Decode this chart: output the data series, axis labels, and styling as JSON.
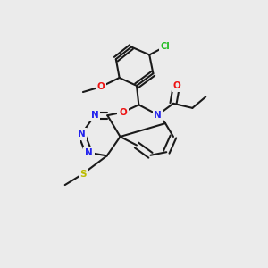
{
  "bg_color": "#ebebeb",
  "bond_color": "#1a1a1a",
  "bw": 1.5,
  "dbo": 0.012,
  "atom_colors": {
    "N": "#2222ee",
    "O": "#ee1111",
    "S": "#bbbb00",
    "Cl": "#22bb22",
    "C": "#1a1a1a"
  }
}
